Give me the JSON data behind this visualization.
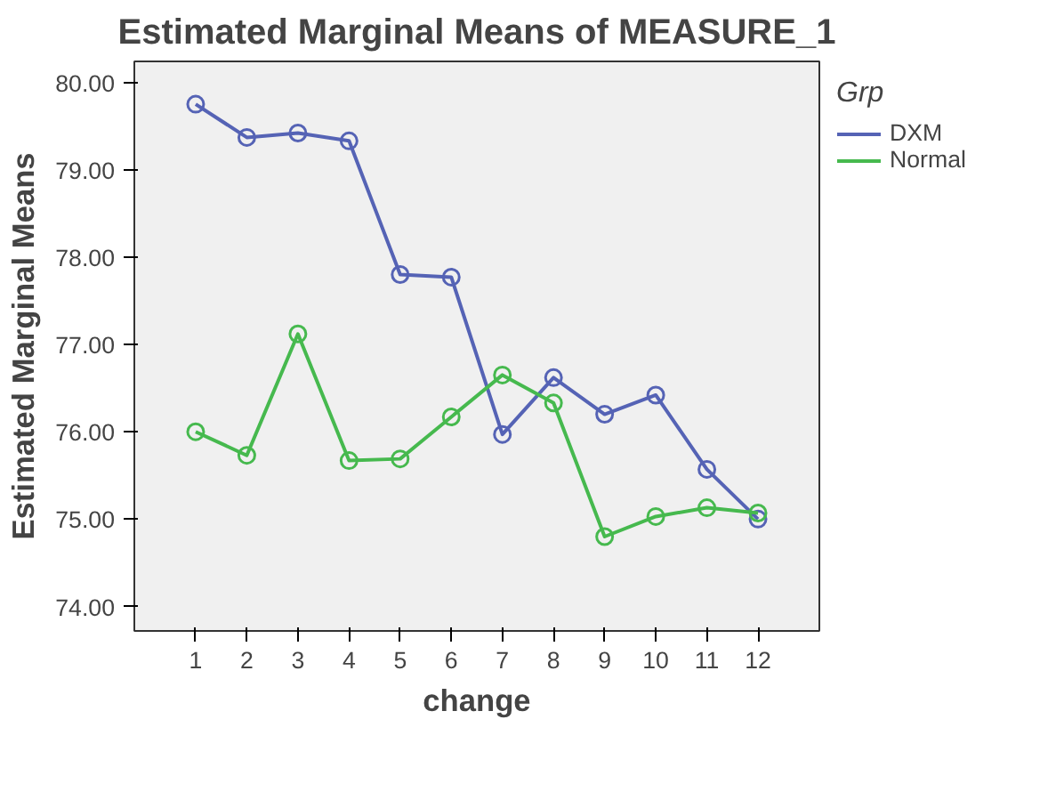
{
  "chart_data": {
    "type": "line",
    "title": "Estimated Marginal Means of MEASURE_1",
    "xlabel": "change",
    "ylabel": "Estimated Marginal Means",
    "legend_title": "Grp",
    "x": [
      1,
      2,
      3,
      4,
      5,
      6,
      7,
      8,
      9,
      10,
      11,
      12
    ],
    "series": [
      {
        "name": "DXM",
        "color": "#5563b5",
        "values": [
          79.75,
          79.37,
          79.42,
          79.33,
          77.8,
          77.77,
          75.97,
          76.62,
          76.2,
          76.42,
          75.57,
          75.0
        ]
      },
      {
        "name": "Normal",
        "color": "#46b94e",
        "values": [
          76.0,
          75.73,
          77.12,
          75.67,
          75.69,
          76.17,
          76.65,
          76.33,
          74.8,
          75.03,
          75.13,
          75.07
        ]
      }
    ],
    "xlim": [
      -0.2,
      13.2
    ],
    "ylim": [
      73.72,
      80.24
    ],
    "xticks": [
      1,
      2,
      3,
      4,
      5,
      6,
      7,
      8,
      9,
      10,
      11,
      12
    ],
    "yticks": [
      {
        "value": 74,
        "label": "74.00"
      },
      {
        "value": 75,
        "label": "75.00"
      },
      {
        "value": 76,
        "label": "76.00"
      },
      {
        "value": 77,
        "label": "77.00"
      },
      {
        "value": 78,
        "label": "78.00"
      },
      {
        "value": 79,
        "label": "79.00"
      },
      {
        "value": 80,
        "label": "80.00"
      }
    ],
    "grid": false,
    "legend": "right",
    "marker": "circle",
    "line_style": "solid"
  }
}
